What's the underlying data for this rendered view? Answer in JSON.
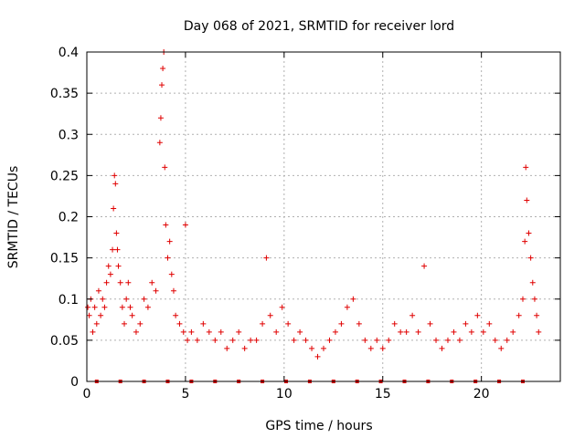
{
  "chart_data": {
    "type": "scatter",
    "title": "Day 068 of 2021, SRMTID for receiver lord",
    "xlabel": "GPS time / hours",
    "ylabel": "SRMTID / TECUs",
    "xlim": [
      0,
      24
    ],
    "ylim": [
      0,
      0.4
    ],
    "x_ticks": [
      0,
      5,
      10,
      15,
      20
    ],
    "x_tick_labels": [
      "0",
      "5",
      "10",
      "15",
      "20"
    ],
    "y_ticks": [
      0,
      0.05,
      0.1,
      0.15,
      0.2,
      0.25,
      0.3,
      0.35,
      0.4
    ],
    "y_tick_labels": [
      "0",
      "0.05",
      "0.1",
      "0.15",
      "0.2",
      "0.25",
      "0.3",
      "0.35",
      "0.4"
    ],
    "grid": true,
    "marker": "+",
    "colors": {
      "series": "#e00000",
      "grid": "#b0b0b0",
      "axis": "#000000"
    },
    "series": [
      {
        "name": "SRMTID",
        "points": [
          [
            0.05,
            0.09
          ],
          [
            0.12,
            0.08
          ],
          [
            0.2,
            0.1
          ],
          [
            0.3,
            0.06
          ],
          [
            0.4,
            0.09
          ],
          [
            0.5,
            0.07
          ],
          [
            0.6,
            0.11
          ],
          [
            0.7,
            0.08
          ],
          [
            0.8,
            0.1
          ],
          [
            0.9,
            0.09
          ],
          [
            1.0,
            0.12
          ],
          [
            1.1,
            0.14
          ],
          [
            1.2,
            0.13
          ],
          [
            1.3,
            0.16
          ],
          [
            1.35,
            0.21
          ],
          [
            1.4,
            0.25
          ],
          [
            1.45,
            0.24
          ],
          [
            1.5,
            0.18
          ],
          [
            1.55,
            0.16
          ],
          [
            1.6,
            0.14
          ],
          [
            1.7,
            0.12
          ],
          [
            1.8,
            0.09
          ],
          [
            1.9,
            0.07
          ],
          [
            2.0,
            0.1
          ],
          [
            2.1,
            0.12
          ],
          [
            2.2,
            0.09
          ],
          [
            2.3,
            0.08
          ],
          [
            2.5,
            0.06
          ],
          [
            2.7,
            0.07
          ],
          [
            2.9,
            0.1
          ],
          [
            3.1,
            0.09
          ],
          [
            3.3,
            0.12
          ],
          [
            3.5,
            0.11
          ],
          [
            3.7,
            0.29
          ],
          [
            3.75,
            0.32
          ],
          [
            3.8,
            0.36
          ],
          [
            3.85,
            0.38
          ],
          [
            3.9,
            0.4
          ],
          [
            3.95,
            0.26
          ],
          [
            4.0,
            0.19
          ],
          [
            4.1,
            0.15
          ],
          [
            4.2,
            0.17
          ],
          [
            4.3,
            0.13
          ],
          [
            4.4,
            0.11
          ],
          [
            4.5,
            0.08
          ],
          [
            4.7,
            0.07
          ],
          [
            4.9,
            0.06
          ],
          [
            5.0,
            0.19
          ],
          [
            5.1,
            0.05
          ],
          [
            5.3,
            0.06
          ],
          [
            5.6,
            0.05
          ],
          [
            5.9,
            0.07
          ],
          [
            6.2,
            0.06
          ],
          [
            6.5,
            0.05
          ],
          [
            6.8,
            0.06
          ],
          [
            7.1,
            0.04
          ],
          [
            7.4,
            0.05
          ],
          [
            7.7,
            0.06
          ],
          [
            8.0,
            0.04
          ],
          [
            8.3,
            0.05
          ],
          [
            8.6,
            0.05
          ],
          [
            8.9,
            0.07
          ],
          [
            9.1,
            0.15
          ],
          [
            9.3,
            0.08
          ],
          [
            9.6,
            0.06
          ],
          [
            9.9,
            0.09
          ],
          [
            10.2,
            0.07
          ],
          [
            10.5,
            0.05
          ],
          [
            10.8,
            0.06
          ],
          [
            11.1,
            0.05
          ],
          [
            11.4,
            0.04
          ],
          [
            11.7,
            0.03
          ],
          [
            12.0,
            0.04
          ],
          [
            12.3,
            0.05
          ],
          [
            12.6,
            0.06
          ],
          [
            12.9,
            0.07
          ],
          [
            13.2,
            0.09
          ],
          [
            13.5,
            0.1
          ],
          [
            13.8,
            0.07
          ],
          [
            14.1,
            0.05
          ],
          [
            14.4,
            0.04
          ],
          [
            14.7,
            0.05
          ],
          [
            15.0,
            0.04
          ],
          [
            15.3,
            0.05
          ],
          [
            15.6,
            0.07
          ],
          [
            15.9,
            0.06
          ],
          [
            16.2,
            0.06
          ],
          [
            16.5,
            0.08
          ],
          [
            16.8,
            0.06
          ],
          [
            17.1,
            0.14
          ],
          [
            17.4,
            0.07
          ],
          [
            17.7,
            0.05
          ],
          [
            18.0,
            0.04
          ],
          [
            18.3,
            0.05
          ],
          [
            18.6,
            0.06
          ],
          [
            18.9,
            0.05
          ],
          [
            19.2,
            0.07
          ],
          [
            19.5,
            0.06
          ],
          [
            19.8,
            0.08
          ],
          [
            20.1,
            0.06
          ],
          [
            20.4,
            0.07
          ],
          [
            20.7,
            0.05
          ],
          [
            21.0,
            0.04
          ],
          [
            21.3,
            0.05
          ],
          [
            21.6,
            0.06
          ],
          [
            21.9,
            0.08
          ],
          [
            22.1,
            0.1
          ],
          [
            22.2,
            0.17
          ],
          [
            22.25,
            0.26
          ],
          [
            22.3,
            0.22
          ],
          [
            22.4,
            0.18
          ],
          [
            22.5,
            0.15
          ],
          [
            22.6,
            0.12
          ],
          [
            22.7,
            0.1
          ],
          [
            22.8,
            0.08
          ],
          [
            22.9,
            0.06
          ]
        ]
      }
    ],
    "x_axis_markers": [
      0.5,
      1.7,
      2.9,
      4.1,
      5.3,
      6.5,
      7.7,
      8.9,
      10.1,
      11.3,
      12.5,
      13.7,
      14.9,
      16.1,
      17.3,
      18.5,
      19.7,
      20.9,
      22.1
    ]
  }
}
